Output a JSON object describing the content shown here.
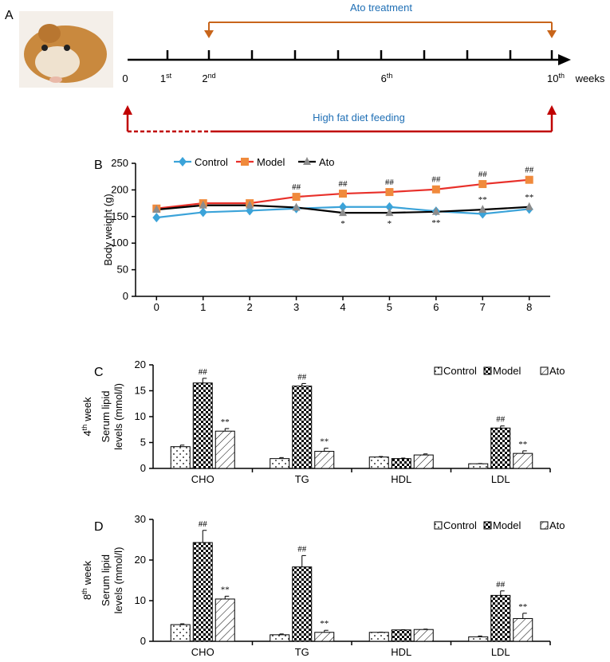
{
  "timeline": {
    "panel": "A",
    "top_label": "Ato treatment",
    "bottom_label": "High fat diet feeding",
    "unit": "weeks",
    "labels": [
      {
        "n": "0"
      },
      {
        "n": "1",
        "sup": "st"
      },
      {
        "n": "2",
        "sup": "nd"
      },
      {
        "n": "6",
        "sup": "th"
      },
      {
        "n": "10",
        "sup": "th"
      }
    ]
  },
  "chart_data": [
    {
      "type": "line",
      "panel": "B",
      "ylabel": "Body weight (g)",
      "x": [
        0,
        1,
        2,
        3,
        4,
        5,
        6,
        7,
        8
      ],
      "xlim": [
        -0.45,
        8.45
      ],
      "xticks": [
        0,
        1,
        2,
        3,
        4,
        5,
        6,
        7,
        8
      ],
      "ylim": [
        0,
        250
      ],
      "yticks": [
        0,
        50,
        100,
        150,
        200,
        250
      ],
      "series": [
        {
          "name": "Control",
          "color": "#3ba3d9",
          "marker": "diamond",
          "marker_color": "#3ba3d9",
          "values": [
            148,
            158,
            161,
            165,
            168,
            168,
            160,
            155,
            164
          ]
        },
        {
          "name": "Model",
          "color": "#e8302a",
          "marker": "square",
          "marker_color": "#f08a3c",
          "values": [
            165,
            175,
            175,
            187,
            193,
            196,
            201,
            211,
            219
          ],
          "annotations": [
            null,
            null,
            null,
            "##",
            "##",
            "##",
            "##",
            "##",
            "##"
          ]
        },
        {
          "name": "Ato",
          "color": "#000000",
          "marker": "triangle",
          "marker_color": "#8c8c8c",
          "values": [
            163,
            171,
            171,
            167,
            157,
            157,
            159,
            163,
            168
          ],
          "annotations": [
            null,
            null,
            null,
            null,
            "*",
            "*",
            "**",
            "**",
            "**"
          ]
        }
      ]
    },
    {
      "type": "bar",
      "panel": "C",
      "week_label": {
        "n": "4",
        "sup": "th",
        "text": "week"
      },
      "ylabel": [
        "Serum lipid",
        "levels (mmol/l)"
      ],
      "categories": [
        "CHO",
        "TG",
        "HDL",
        "LDL"
      ],
      "ylim": [
        0,
        20
      ],
      "yticks": [
        0,
        5,
        10,
        15,
        20
      ],
      "series": [
        {
          "name": "Control",
          "color": "#000000",
          "pattern": "dots",
          "values": [
            4.2,
            1.9,
            2.2,
            0.9
          ],
          "errors": [
            0.3,
            0.2,
            0.1,
            0.05
          ]
        },
        {
          "name": "Model",
          "color": "#000000",
          "pattern": "checker",
          "values": [
            16.5,
            15.9,
            1.9,
            7.8
          ],
          "errors": [
            0.9,
            0.5,
            0.1,
            0.4
          ],
          "annotations": [
            "##",
            "##",
            null,
            "##"
          ]
        },
        {
          "name": "Ato",
          "color": "#000000",
          "pattern": "hatch",
          "values": [
            7.2,
            3.3,
            2.6,
            2.9
          ],
          "errors": [
            0.5,
            0.6,
            0.2,
            0.5
          ],
          "annotations": [
            "**",
            "**",
            null,
            "**"
          ]
        }
      ]
    },
    {
      "type": "bar",
      "panel": "D",
      "week_label": {
        "n": "8",
        "sup": "th",
        "text": "week"
      },
      "ylabel": [
        "Serum lipid",
        "levels (mmol/l)"
      ],
      "categories": [
        "CHO",
        "TG",
        "HDL",
        "LDL"
      ],
      "ylim": [
        0,
        30
      ],
      "yticks": [
        0,
        10,
        20,
        30
      ],
      "series": [
        {
          "name": "Control",
          "color": "#000000",
          "pattern": "dots",
          "values": [
            4.1,
            1.6,
            2.2,
            1.1
          ],
          "errors": [
            0.2,
            0.2,
            0.05,
            0.2
          ]
        },
        {
          "name": "Model",
          "color": "#000000",
          "pattern": "checker",
          "values": [
            24.3,
            18.3,
            2.8,
            11.3
          ],
          "errors": [
            3.0,
            2.8,
            0.05,
            1.1
          ],
          "annotations": [
            "##",
            "##",
            null,
            "##"
          ]
        },
        {
          "name": "Ato",
          "color": "#000000",
          "pattern": "hatch",
          "values": [
            10.4,
            2.2,
            2.9,
            5.6
          ],
          "errors": [
            0.7,
            0.5,
            0.1,
            1.3
          ],
          "annotations": [
            "**",
            "**",
            null,
            "**"
          ]
        }
      ]
    }
  ]
}
